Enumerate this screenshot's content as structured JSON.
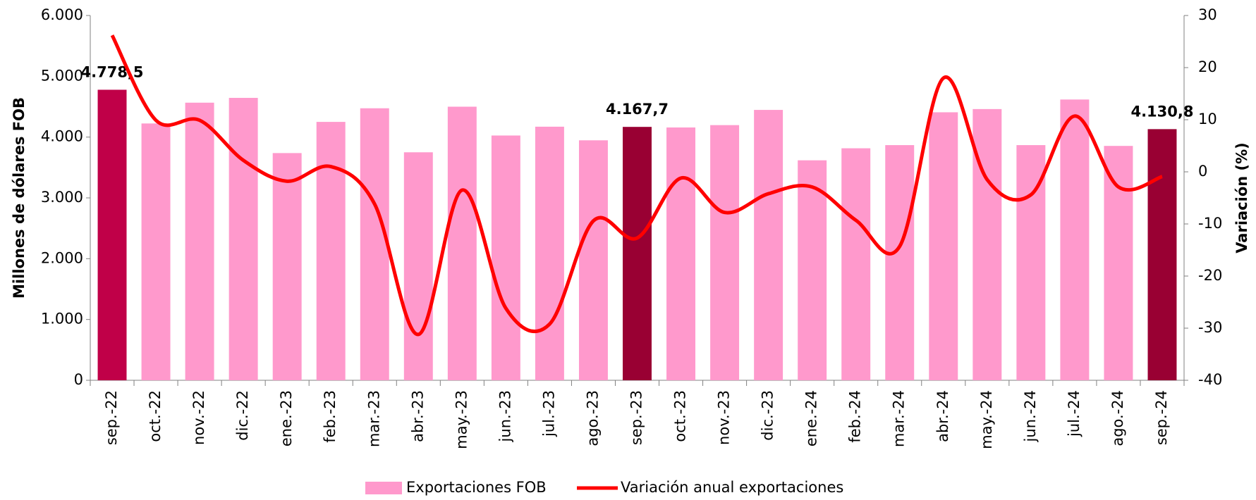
{
  "chart_data": {
    "type": "bar",
    "categories": [
      "sep.-22",
      "oct.-22",
      "nov.-22",
      "dic.-22",
      "ene.-23",
      "feb.-23",
      "mar.-23",
      "abr.-23",
      "may.-23",
      "jun.-23",
      "jul.-23",
      "ago.-23",
      "sep.-23",
      "oct.-23",
      "nov.-23",
      "dic.-23",
      "ene.-24",
      "feb.-24",
      "mar.-24",
      "abr.-24",
      "may.-24",
      "jun.-24",
      "jul.-24",
      "ago.-24",
      "sep.-24"
    ],
    "ylabel": "Millones de dólares  FOB",
    "y2label": "Variación (%)",
    "ylim": [
      0,
      6000
    ],
    "yticks": [
      0,
      {
        "value": 1000,
        "label": "1.000"
      },
      {
        "value": 2000,
        "label": "2.000"
      },
      {
        "value": 3000,
        "label": "3.000"
      },
      {
        "value": 4000,
        "label": "4.000"
      },
      {
        "value": 5000,
        "label": "5.000"
      },
      {
        "value": 6000,
        "label": "6.000"
      }
    ],
    "y2lim": [
      -40,
      30
    ],
    "y2ticks": [
      -40,
      -30,
      -20,
      -10,
      0,
      10,
      20,
      30
    ],
    "legend": "bottom",
    "series": [
      {
        "name": "Exportaciones FOB",
        "type": "bar",
        "color": "#ff99cc",
        "colors": [
          "#c00048",
          "#ff99cc",
          "#ff99cc",
          "#ff99cc",
          "#ff99cc",
          "#ff99cc",
          "#ff99cc",
          "#ff99cc",
          "#ff99cc",
          "#ff99cc",
          "#ff99cc",
          "#ff99cc",
          "#990033",
          "#ff99cc",
          "#ff99cc",
          "#ff99cc",
          "#ff99cc",
          "#ff99cc",
          "#ff99cc",
          "#ff99cc",
          "#ff99cc",
          "#ff99cc",
          "#ff99cc",
          "#ff99cc",
          "#990033"
        ],
        "values": [
          4778.5,
          4224,
          4566,
          4645,
          3737,
          4250,
          4474,
          3750,
          4500,
          4026,
          4171,
          3947,
          4167.7,
          4158,
          4197,
          4447,
          3618,
          3816,
          3868,
          4408,
          4461,
          3868,
          4618,
          3855,
          4130.8
        ],
        "value_labels": [
          "4.778,5",
          null,
          null,
          null,
          null,
          null,
          null,
          null,
          null,
          null,
          null,
          null,
          "4.167,7",
          null,
          null,
          null,
          null,
          null,
          null,
          null,
          null,
          null,
          null,
          null,
          "4.130,8"
        ]
      },
      {
        "name": "Variación anual exportaciones",
        "type": "line",
        "axis": "y2",
        "color": "#ff0000",
        "values": [
          26.2,
          9.9,
          9.9,
          2.2,
          -1.8,
          1.0,
          -6.2,
          -31.2,
          -3.5,
          -26.2,
          -29.2,
          -9.4,
          -12.7,
          -1.2,
          -7.8,
          -4.2,
          -2.9,
          -9.3,
          -14.3,
          18.0,
          -1.5,
          -4.4,
          10.7,
          -2.9,
          -0.9
        ]
      }
    ]
  }
}
